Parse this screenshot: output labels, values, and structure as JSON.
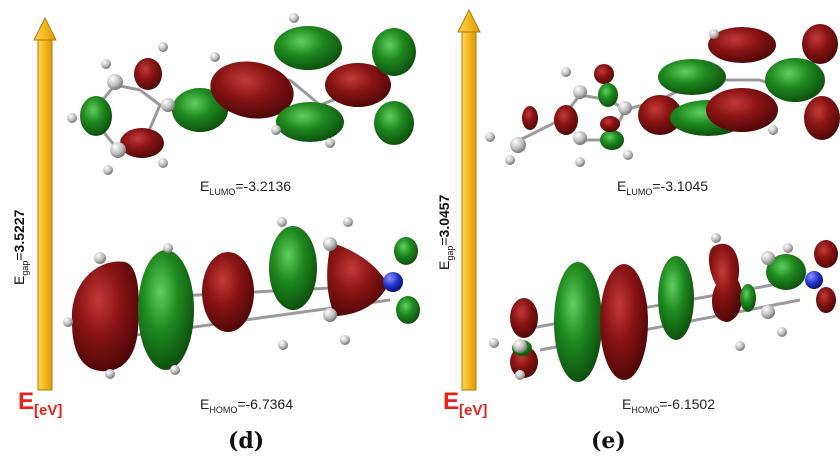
{
  "panels": [
    {
      "id": "d",
      "label": "(d)",
      "gap_prefix": "E",
      "gap_sub": "gap",
      "gap_eq": "=",
      "gap_value": "3.5227",
      "lumo_prefix": "E",
      "lumo_sub": "LUMO",
      "lumo_value": "=-3.2136",
      "homo_prefix": "E",
      "homo_sub": "HOMO",
      "homo_value": "=-6.7364",
      "unit_main": "E",
      "unit_sub": "[eV]"
    },
    {
      "id": "e",
      "label": "(e)",
      "gap_prefix": "E",
      "gap_sub": "gap",
      "gap_eq": "=",
      "gap_value": "3.0457",
      "lumo_prefix": "E",
      "lumo_sub": "LUMO",
      "lumo_value": "=-3.1045",
      "homo_prefix": "E",
      "homo_sub": "HOMO",
      "homo_value": "=-6.1502",
      "unit_main": "E",
      "unit_sub": "[eV]"
    }
  ],
  "colors": {
    "arrow": "#f2b41c",
    "arrow_edge": "#b07e00",
    "lobe_red": "#7d1010",
    "lobe_green": "#1d7a1d",
    "unit_red": "#e8211d",
    "nitrogen": "#1f2fc8"
  }
}
